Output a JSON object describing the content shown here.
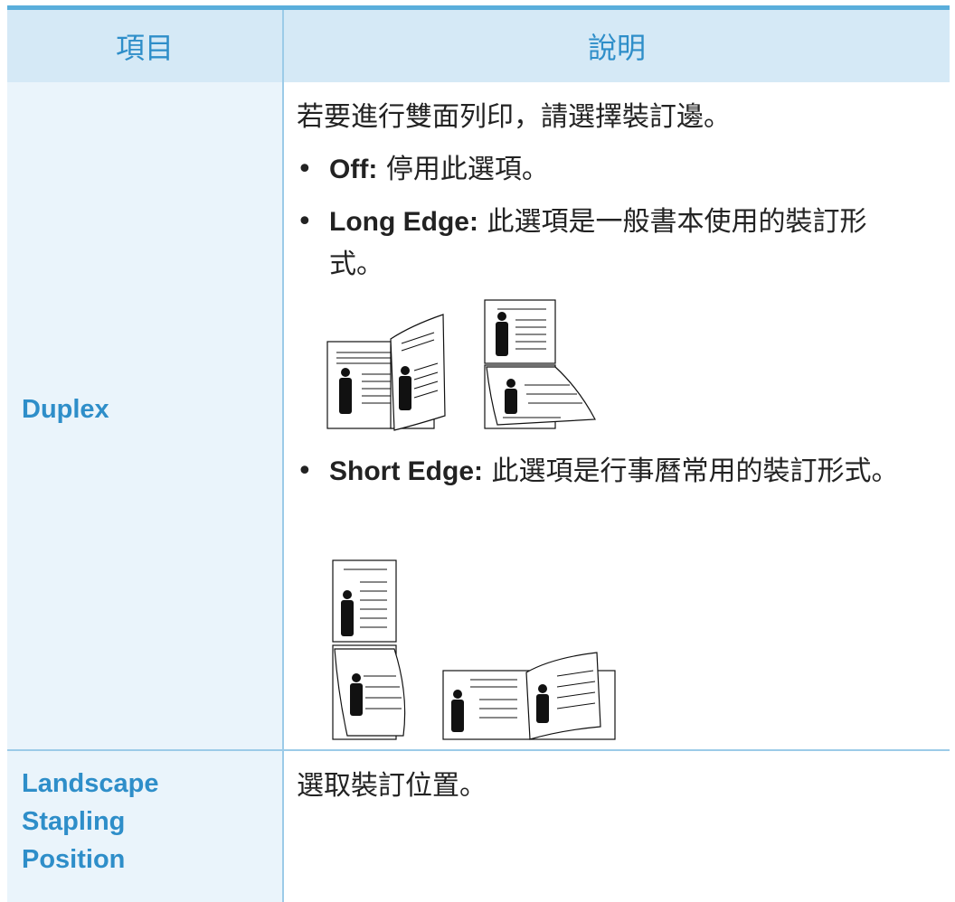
{
  "header": {
    "col1": "項目",
    "col2": "說明"
  },
  "rows": [
    {
      "label": "Duplex",
      "intro": "若要進行雙面列印，請選擇裝訂邊。",
      "items": [
        {
          "term": "Off:",
          "text": "停用此選項。"
        },
        {
          "term": "Long Edge:",
          "text": "此選項是一般書本使用的裝訂形式。"
        },
        {
          "term": "Short Edge:",
          "text": "此選項是行事曆常用的裝訂形式。"
        }
      ]
    },
    {
      "label": "Landscape Stapling Position",
      "intro": "選取裝訂位置。"
    }
  ]
}
